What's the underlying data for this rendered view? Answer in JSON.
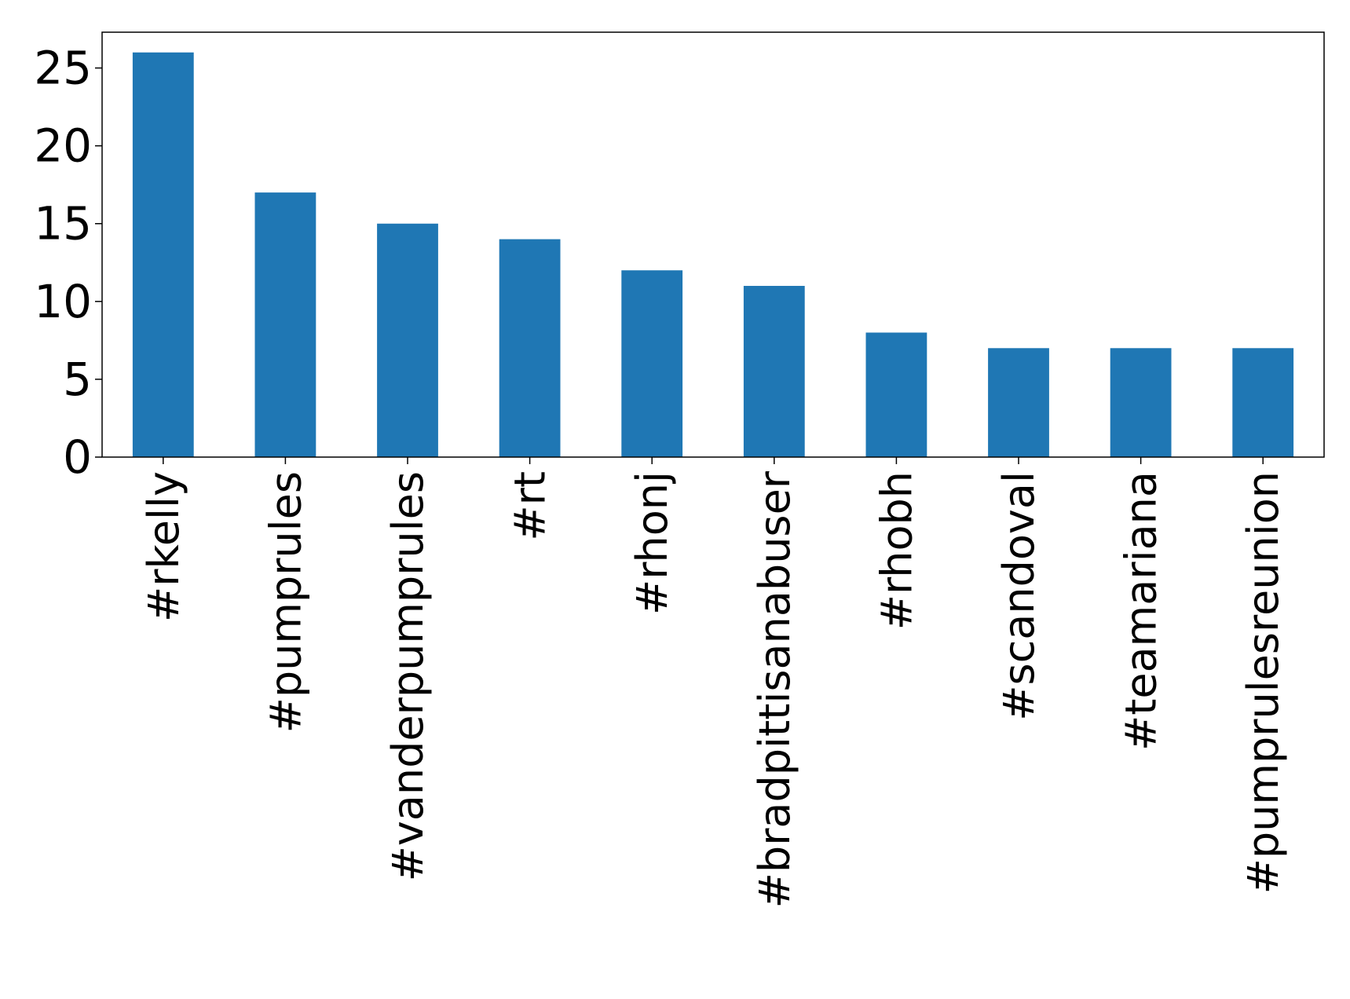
{
  "chart_data": {
    "type": "bar",
    "title": "",
    "xlabel": "",
    "ylabel": "",
    "categories": [
      "#rkelly",
      "#pumprules",
      "#vanderpumprules",
      "#rt",
      "#rhonj",
      "#bradpittisanabuser",
      "#rhobh",
      "#scandoval",
      "#teamariana",
      "#pumprulesreunion"
    ],
    "values": [
      26,
      17,
      15,
      14,
      12,
      11,
      8,
      7,
      7,
      7
    ],
    "ylim": [
      0,
      27.3
    ],
    "yticks": [
      0,
      5,
      10,
      15,
      20,
      25
    ],
    "ytick_labels": [
      "0",
      "5",
      "10",
      "15",
      "20",
      "25"
    ],
    "bar_color": "#1f77b4",
    "grid": false,
    "legend": "none"
  }
}
